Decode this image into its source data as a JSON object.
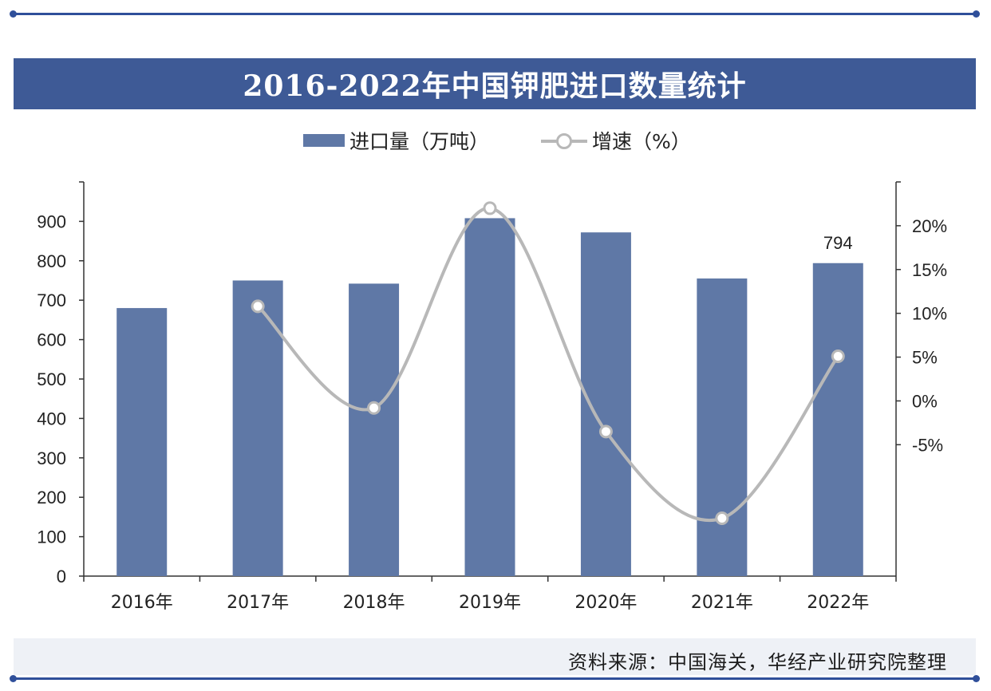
{
  "title": "2016-2022年中国钾肥进口数量统计",
  "legend": {
    "bar_label": "进口量（万吨）",
    "line_label": "增速（%）"
  },
  "source": "资料来源：中国海关，华经产业研究院整理",
  "colors": {
    "bar": "#5f78a6",
    "line": "#b8b8b8",
    "title_bg": "#3e5a96"
  },
  "chart_data": {
    "type": "bar",
    "categories": [
      "2016年",
      "2017年",
      "2018年",
      "2019年",
      "2020年",
      "2021年",
      "2022年"
    ],
    "series": [
      {
        "name": "进口量（万吨）",
        "type": "bar",
        "axis": "left",
        "values": [
          680,
          750,
          742,
          908,
          872,
          755,
          794
        ]
      },
      {
        "name": "增速（%）",
        "type": "line",
        "axis": "right",
        "values": [
          null,
          10.8,
          -0.8,
          22.0,
          -3.5,
          -13.4,
          5.1
        ]
      }
    ],
    "data_labels": [
      {
        "category": "2022年",
        "series": "进口量（万吨）",
        "text": "794"
      }
    ],
    "left_axis": {
      "ylim": [
        0,
        1000
      ],
      "ticks": [
        0,
        100,
        200,
        300,
        400,
        500,
        600,
        700,
        800,
        900
      ]
    },
    "right_axis": {
      "ylim": [
        -20,
        25
      ],
      "ticks": [
        "0%",
        "5%",
        "10%",
        "15%",
        "20%",
        "-5%"
      ],
      "tick_values": [
        0,
        5,
        10,
        15,
        20,
        -5
      ]
    },
    "grid": false
  }
}
